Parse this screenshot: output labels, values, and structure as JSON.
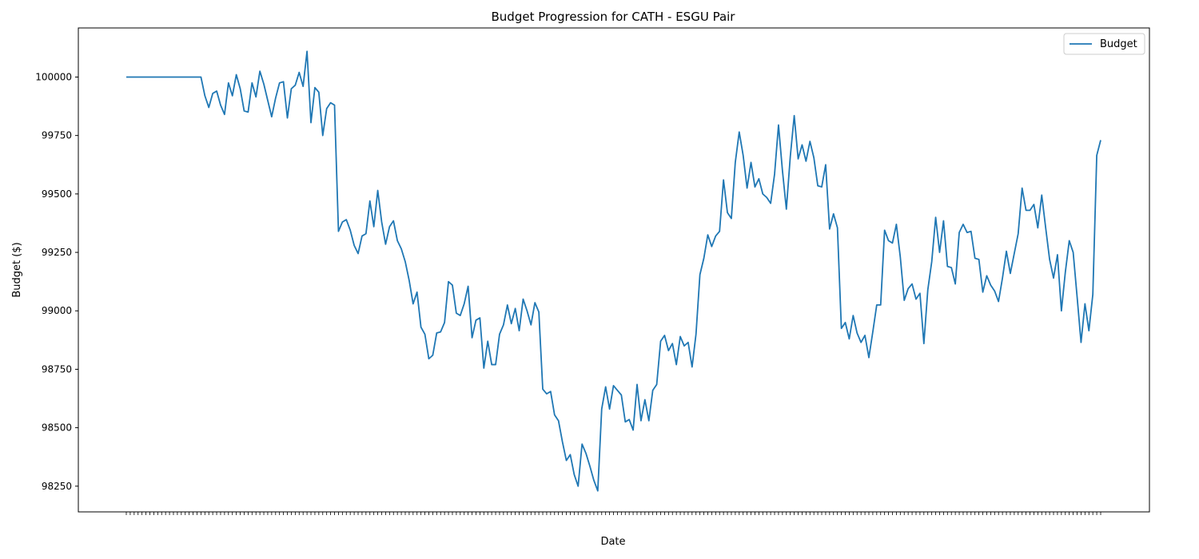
{
  "chart_data": {
    "type": "line",
    "title": "Budget Progression for CATH - ESGU Pair",
    "xlabel": "Date",
    "ylabel": "Budget ($)",
    "ylim": [
      98140,
      100210
    ],
    "yticks": [
      98250,
      98500,
      98750,
      99000,
      99250,
      99500,
      99750,
      100000
    ],
    "grid": false,
    "legend_position": "upper right",
    "series": [
      {
        "name": "Budget",
        "color": "#1f77b4",
        "values": [
          100000,
          100000,
          100000,
          100000,
          100000,
          100000,
          100000,
          100000,
          100000,
          100000,
          100000,
          100000,
          100000,
          100000,
          100000,
          100000,
          100000,
          100000,
          100000,
          100000,
          99920,
          99870,
          99930,
          99940,
          99880,
          99840,
          99975,
          99920,
          100010,
          99950,
          99855,
          99850,
          99975,
          99915,
          100025,
          99970,
          99900,
          99830,
          99910,
          99975,
          99980,
          99825,
          99950,
          99965,
          100020,
          99960,
          100110,
          99805,
          99955,
          99935,
          99750,
          99865,
          99890,
          99880,
          99340,
          99380,
          99390,
          99345,
          99280,
          99245,
          99320,
          99330,
          99470,
          99360,
          99515,
          99380,
          99285,
          99360,
          99385,
          99300,
          99265,
          99210,
          99130,
          99030,
          99080,
          98930,
          98900,
          98795,
          98810,
          98905,
          98910,
          98950,
          99125,
          99110,
          98990,
          98980,
          99030,
          99105,
          98885,
          98960,
          98970,
          98755,
          98870,
          98770,
          98770,
          98900,
          98940,
          99025,
          98945,
          99010,
          98915,
          99050,
          99000,
          98940,
          99035,
          98995,
          98665,
          98645,
          98655,
          98555,
          98530,
          98440,
          98360,
          98385,
          98300,
          98250,
          98430,
          98390,
          98335,
          98275,
          98230,
          98580,
          98675,
          98580,
          98680,
          98660,
          98640,
          98525,
          98535,
          98490,
          98685,
          98530,
          98620,
          98530,
          98660,
          98685,
          98870,
          98895,
          98830,
          98860,
          98770,
          98890,
          98850,
          98865,
          98760,
          98900,
          99155,
          99225,
          99325,
          99275,
          99320,
          99340,
          99560,
          99420,
          99395,
          99635,
          99765,
          99665,
          99525,
          99635,
          99530,
          99565,
          99500,
          99485,
          99460,
          99585,
          99795,
          99600,
          99435,
          99660,
          99835,
          99650,
          99710,
          99640,
          99725,
          99655,
          99535,
          99530,
          99625,
          99350,
          99415,
          99355,
          98925,
          98950,
          98880,
          98980,
          98905,
          98865,
          98895,
          98800,
          98910,
          99025,
          99025,
          99345,
          99300,
          99290,
          99370,
          99230,
          99045,
          99095,
          99115,
          99050,
          99075,
          98860,
          99090,
          99210,
          99400,
          99250,
          99385,
          99190,
          99185,
          99115,
          99335,
          99370,
          99335,
          99340,
          99225,
          99220,
          99080,
          99150,
          99110,
          99085,
          99040,
          99140,
          99255,
          99160,
          99245,
          99330,
          99525,
          99430,
          99430,
          99455,
          99355,
          99495,
          99355,
          99220,
          99140,
          99240,
          99000,
          99165,
          99300,
          99250,
          99060,
          98865,
          99030,
          98915,
          99070,
          99665,
          99730
        ]
      }
    ]
  }
}
